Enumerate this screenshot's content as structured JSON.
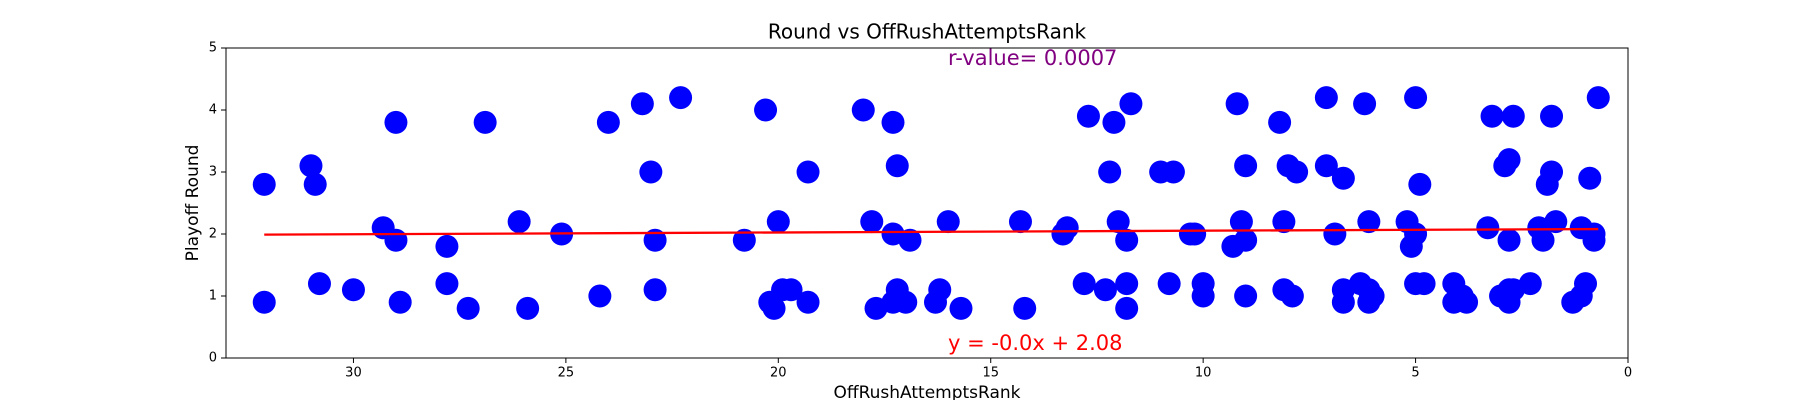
{
  "chart_data": {
    "type": "scatter",
    "title": "Round vs OffRushAttemptsRank",
    "xlabel": "OffRushAttemptsRank",
    "ylabel": "Playoff Round",
    "x": [
      32.1,
      32.1,
      31.0,
      30.9,
      30.8,
      30.0,
      29.3,
      29.0,
      29.0,
      28.9,
      27.8,
      27.8,
      27.3,
      26.9,
      26.1,
      25.9,
      25.1,
      24.2,
      24.0,
      23.2,
      23.0,
      22.9,
      22.9,
      22.3,
      20.8,
      20.3,
      20.2,
      20.1,
      20.0,
      19.9,
      19.7,
      19.3,
      19.3,
      18.0,
      17.8,
      17.7,
      17.3,
      17.3,
      17.3,
      17.2,
      17.2,
      17.0,
      16.9,
      16.3,
      16.2,
      16.0,
      15.7,
      14.3,
      14.2,
      13.3,
      13.2,
      12.8,
      12.7,
      12.3,
      12.2,
      12.1,
      12.0,
      11.8,
      11.8,
      11.8,
      11.7,
      11.0,
      10.8,
      10.7,
      10.3,
      10.2,
      10.0,
      10.0,
      9.3,
      9.2,
      9.1,
      9.0,
      9.0,
      9.0,
      8.2,
      8.1,
      8.1,
      8.0,
      7.9,
      7.8,
      7.1,
      7.1,
      6.9,
      6.7,
      6.7,
      6.7,
      6.3,
      6.2,
      6.1,
      6.1,
      6.1,
      6.0,
      5.2,
      5.1,
      5.0,
      5.0,
      5.0,
      4.9,
      4.8,
      4.1,
      4.1,
      3.9,
      3.8,
      3.3,
      3.2,
      3.0,
      2.9,
      2.8,
      2.8,
      2.8,
      2.8,
      2.7,
      2.7,
      2.3,
      2.1,
      2.0,
      1.9,
      1.8,
      1.8,
      1.7,
      1.3,
      1.1,
      1.1,
      1.0,
      0.9,
      0.8,
      0.8,
      0.7
    ],
    "values": [
      2.8,
      0.9,
      3.1,
      2.8,
      1.2,
      1.1,
      2.1,
      3.8,
      1.9,
      0.9,
      1.8,
      1.2,
      0.8,
      3.8,
      2.2,
      0.8,
      2.0,
      1.0,
      3.8,
      4.1,
      3.0,
      1.9,
      1.1,
      4.2,
      1.9,
      4.0,
      0.9,
      0.8,
      2.2,
      1.1,
      1.1,
      3.0,
      0.9,
      4.0,
      2.2,
      0.8,
      3.8,
      2.0,
      0.9,
      3.1,
      1.1,
      0.9,
      1.9,
      0.9,
      1.1,
      2.2,
      0.8,
      2.2,
      0.8,
      2.0,
      2.1,
      1.2,
      3.9,
      1.1,
      3.0,
      3.8,
      2.2,
      1.2,
      1.9,
      0.8,
      4.1,
      3.0,
      1.2,
      3.0,
      2.0,
      2.0,
      1.2,
      1.0,
      1.8,
      4.1,
      2.2,
      1.9,
      3.1,
      1.0,
      3.8,
      2.2,
      1.1,
      3.1,
      1.0,
      3.0,
      4.2,
      3.1,
      2.0,
      2.9,
      1.1,
      0.9,
      1.2,
      4.1,
      1.1,
      2.2,
      0.9,
      1.0,
      2.2,
      1.8,
      4.2,
      2.0,
      1.2,
      2.8,
      1.2,
      1.2,
      0.9,
      1.0,
      0.9,
      2.1,
      3.9,
      1.0,
      3.1,
      3.2,
      1.9,
      1.1,
      0.9,
      3.9,
      1.1,
      1.2,
      2.1,
      1.9,
      2.8,
      3.0,
      3.9,
      2.2,
      0.9,
      2.1,
      1.0,
      1.2,
      2.9,
      2.0,
      1.9,
      4.2
    ],
    "color": "#0000ff",
    "fit_line": {
      "x": [
        32.1,
        0.7
      ],
      "values": [
        1.99,
        2.08
      ],
      "color": "#ff0000"
    },
    "annotations": [
      {
        "text": "r-value= 0.0007",
        "color": "#800080"
      },
      {
        "text": "y = -0.0x + 2.08",
        "color": "#ff0000"
      }
    ],
    "xlim": [
      33,
      0
    ],
    "xticks": [
      0,
      5,
      10,
      15,
      20,
      25,
      30
    ],
    "ylim": [
      0,
      5
    ],
    "yticks": [
      0,
      1,
      2,
      3,
      4,
      5
    ],
    "grid": false
  }
}
